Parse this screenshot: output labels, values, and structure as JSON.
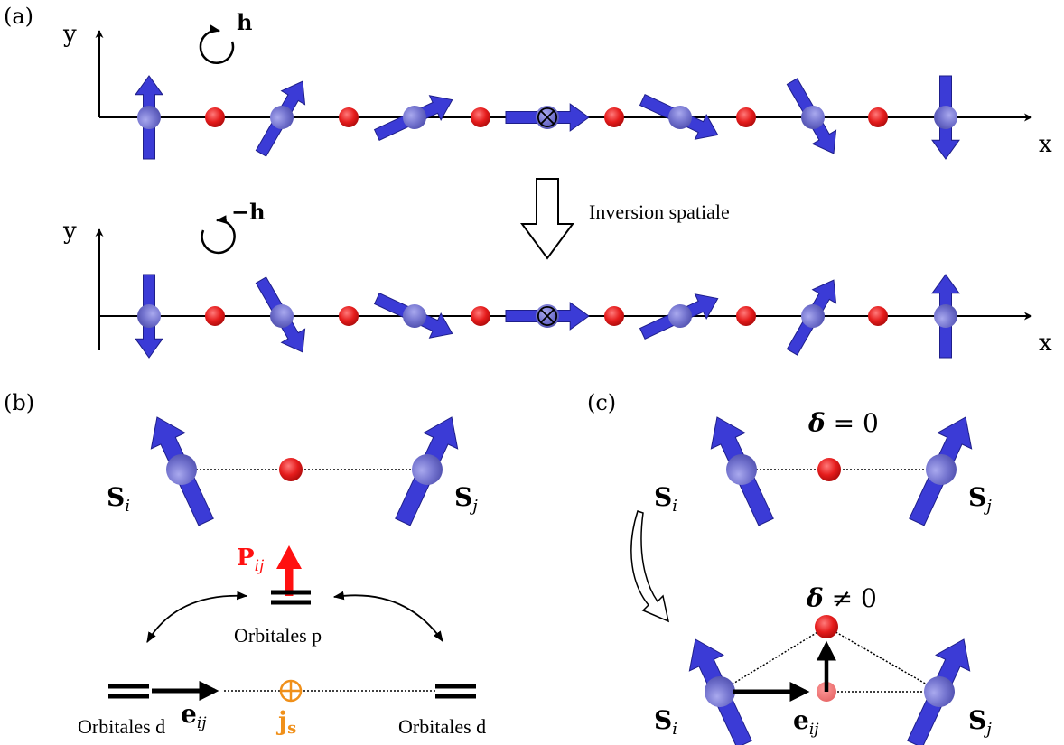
{
  "panel_labels": {
    "a": "(a)",
    "b": "(b)",
    "c": "(c)"
  },
  "panel_a": {
    "top_chain": {
      "axis_x": "x",
      "axis_y": "y",
      "rotation_label": "h",
      "spin_angles_deg": [
        90,
        60,
        25,
        0,
        -25,
        -60,
        -90
      ]
    },
    "bottom_chain": {
      "axis_x": "x",
      "axis_y": "y",
      "rotation_label": "−h",
      "spin_angles_deg": [
        -90,
        -60,
        -25,
        0,
        25,
        60,
        90
      ]
    },
    "inversion_label": "Inversion spatiale",
    "center_symbol": "⊗"
  },
  "panel_b": {
    "spin_i": "S",
    "spin_i_sub": "i",
    "spin_j": "S",
    "spin_j_sub": "j",
    "polarization": "P",
    "polarization_sub": "ij",
    "orbitals_p": "Orbitales p",
    "orbitals_d_left": "Orbitales d",
    "orbitals_d_right": "Orbitales d",
    "bond_vector": "e",
    "bond_vector_sub": "ij",
    "spin_current": "j",
    "spin_current_sub": "s",
    "current_symbol": "⊕"
  },
  "panel_c": {
    "top_label_delta": "δ",
    "top_label_rest": " = 0",
    "bottom_label_delta": "δ",
    "bottom_label_rest": " ≠ 0",
    "spin_i": "S",
    "spin_i_sub": "i",
    "spin_j": "S",
    "spin_j_sub": "j",
    "bond_vector": "e",
    "bond_vector_sub": "ij"
  },
  "colors": {
    "spin": "#3b3bd6",
    "spin_ball": "#7272cc",
    "anion": "#e02020",
    "polarization": "#ff1010",
    "spin_current": "#f0901a"
  }
}
